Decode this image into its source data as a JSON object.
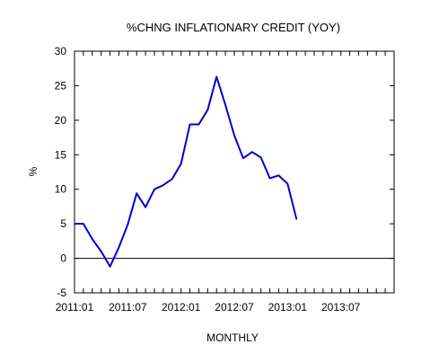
{
  "chart_data": {
    "type": "line",
    "title": "%CHNG INFLATIONARY CREDIT (YOY)",
    "xlabel": "MONTHLY",
    "ylabel": "%",
    "ylim": [
      -5,
      30
    ],
    "yticks": [
      -5,
      0,
      5,
      10,
      15,
      20,
      25,
      30
    ],
    "xlim": [
      "2011:01",
      "2014:01"
    ],
    "xtick_labels": [
      "2011:01",
      "2011:07",
      "2012:01",
      "2012:07",
      "2013:01",
      "2013:07"
    ],
    "zero_line": true,
    "grid": false,
    "series": [
      {
        "name": "",
        "color": "#0000CC",
        "x": [
          "2011:01",
          "2011:02",
          "2011:03",
          "2011:04",
          "2011:05",
          "2011:06",
          "2011:07",
          "2011:08",
          "2011:09",
          "2011:10",
          "2011:11",
          "2011:12",
          "2012:01",
          "2012:02",
          "2012:03",
          "2012:04",
          "2012:05",
          "2012:06",
          "2012:07",
          "2012:08",
          "2012:09",
          "2012:10",
          "2012:11",
          "2012:12",
          "2013:01",
          "2013:02"
        ],
        "values": [
          5.0,
          5.0,
          2.8,
          1.0,
          -1.2,
          1.6,
          4.9,
          9.4,
          7.4,
          10.0,
          10.6,
          11.5,
          13.7,
          19.4,
          19.4,
          21.5,
          26.3,
          22.2,
          17.8,
          14.5,
          15.4,
          14.6,
          11.6,
          12.0,
          10.8,
          5.7
        ]
      }
    ]
  }
}
